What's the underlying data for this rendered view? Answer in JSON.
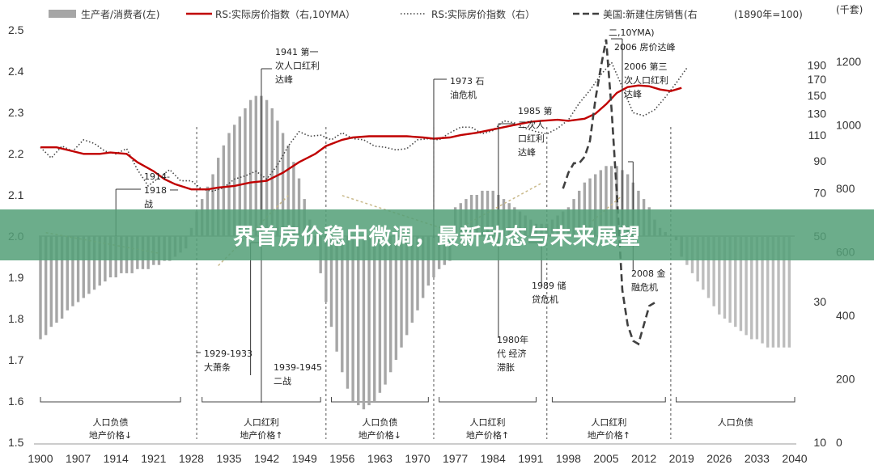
{
  "banner": {
    "title": "界首房价稳中微调，最新动态与未来展望"
  },
  "chart_data": {
    "type": "line",
    "legend": {
      "items": [
        {
          "id": "bar",
          "label": "生产者/消费者(左)"
        },
        {
          "id": "red",
          "label": "RS:实际房价指数（右,10YMA）"
        },
        {
          "id": "dot",
          "label": "RS:实际房价指数（右）"
        },
        {
          "id": "dash",
          "label": "美国:新建住房销售(右"
        }
      ],
      "extra": "(1890年=100)"
    },
    "unit_right_outer": "(千套)",
    "x_axis": {
      "range": [
        1900,
        2040
      ],
      "ticks": [
        1900,
        1907,
        1914,
        1921,
        1928,
        1935,
        1942,
        1949,
        1956,
        1963,
        1970,
        1977,
        1984,
        1991,
        1998,
        2005,
        2012,
        2019,
        2026,
        2033,
        2040
      ]
    },
    "y_left": {
      "range": [
        1.5,
        2.5
      ],
      "ticks": [
        1.5,
        1.6,
        1.7,
        1.8,
        1.9,
        2.0,
        2.1,
        2.2,
        2.3,
        2.4,
        2.5
      ]
    },
    "y_right": {
      "scale": "log",
      "range": [
        10,
        250
      ],
      "ticks": [
        10,
        30,
        50,
        70,
        90,
        110,
        130,
        150,
        170,
        190
      ]
    },
    "y_right_outer": {
      "range": [
        0,
        1300
      ],
      "ticks": [
        0,
        200,
        400,
        600,
        800,
        1000,
        1200
      ]
    },
    "colors": {
      "bar": "#a6a6a6",
      "red": "#c00000",
      "dot": "#444444",
      "dash": "#404040",
      "arrow": "#c9b98a"
    },
    "series": [
      {
        "name": "生产者/消费者(左)",
        "kind": "bar",
        "axis": "left",
        "x": [
          1900,
          1901,
          1902,
          1903,
          1904,
          1905,
          1906,
          1907,
          1908,
          1909,
          1910,
          1911,
          1912,
          1913,
          1914,
          1915,
          1916,
          1917,
          1918,
          1919,
          1920,
          1921,
          1922,
          1923,
          1924,
          1925,
          1926,
          1927,
          1928,
          1929,
          1930,
          1931,
          1932,
          1933,
          1934,
          1935,
          1936,
          1937,
          1938,
          1939,
          1940,
          1941,
          1942,
          1943,
          1944,
          1945,
          1946,
          1947,
          1948,
          1949,
          1950,
          1951,
          1952,
          1953,
          1954,
          1955,
          1956,
          1957,
          1958,
          1959,
          1960,
          1961,
          1962,
          1963,
          1964,
          1965,
          1966,
          1967,
          1968,
          1969,
          1970,
          1971,
          1972,
          1973,
          1974,
          1975,
          1976,
          1977,
          1978,
          1979,
          1980,
          1981,
          1982,
          1983,
          1984,
          1985,
          1986,
          1987,
          1988,
          1989,
          1990,
          1991,
          1992,
          1993,
          1994,
          1995,
          1996,
          1997,
          1998,
          1999,
          2000,
          2001,
          2002,
          2003,
          2004,
          2005,
          2006,
          2007,
          2008,
          2009,
          2010,
          2011,
          2012,
          2013,
          2014,
          2015,
          2016,
          2017,
          2018,
          2019,
          2020,
          2021,
          2022,
          2023,
          2024,
          2025,
          2026,
          2027,
          2028,
          2029,
          2030,
          2031,
          2032,
          2033,
          2034,
          2035,
          2036,
          2037,
          2038,
          2039
        ],
        "values": [
          1.75,
          1.76,
          1.78,
          1.79,
          1.8,
          1.82,
          1.83,
          1.84,
          1.85,
          1.86,
          1.87,
          1.88,
          1.89,
          1.9,
          1.9,
          1.91,
          1.91,
          1.91,
          1.92,
          1.92,
          1.92,
          1.93,
          1.93,
          1.94,
          1.94,
          1.95,
          1.96,
          1.97,
          2.02,
          2.06,
          2.09,
          2.12,
          2.15,
          2.19,
          2.22,
          2.25,
          2.27,
          2.29,
          2.31,
          2.33,
          2.34,
          2.34,
          2.33,
          2.31,
          2.28,
          2.25,
          2.22,
          2.18,
          2.14,
          2.09,
          2.04,
          1.98,
          1.91,
          1.84,
          1.78,
          1.72,
          1.67,
          1.63,
          1.6,
          1.59,
          1.58,
          1.59,
          1.6,
          1.62,
          1.64,
          1.67,
          1.7,
          1.73,
          1.76,
          1.79,
          1.82,
          1.85,
          1.88,
          1.9,
          1.92,
          1.93,
          1.94,
          2.07,
          2.08,
          2.09,
          2.1,
          2.1,
          2.11,
          2.11,
          2.11,
          2.1,
          2.09,
          2.08,
          2.07,
          2.06,
          2.05,
          2.04,
          2.03,
          2.03,
          2.03,
          2.04,
          2.05,
          2.06,
          2.07,
          2.09,
          2.11,
          2.13,
          2.14,
          2.15,
          2.16,
          2.17,
          2.17,
          2.17,
          2.16,
          2.15,
          2.13,
          2.11,
          2.09,
          2.07,
          2.04,
          2.02,
          2.01,
          2.0,
          1.99,
          1.95,
          1.93,
          1.91,
          1.89,
          1.87,
          1.85,
          1.83,
          1.81,
          1.8,
          1.79,
          1.78,
          1.77,
          1.76,
          1.75,
          1.75,
          1.74,
          1.73,
          1.73,
          1.73,
          1.73,
          1.73
        ]
      },
      {
        "name": "RS:实际房价指数（右,10YMA）",
        "kind": "line",
        "axis": "right",
        "x": [
          1900,
          1903,
          1906,
          1908,
          1911,
          1913,
          1916,
          1918,
          1921,
          1923,
          1925,
          1928,
          1931,
          1933,
          1936,
          1939,
          1942,
          1945,
          1948,
          1951,
          1953,
          1956,
          1958,
          1961,
          1963,
          1966,
          1968,
          1971,
          1973,
          1976,
          1978,
          1981,
          1983,
          1986,
          1988,
          1991,
          1993,
          1996,
          1998,
          2001,
          2003,
          2005,
          2007,
          2009,
          2011,
          2013,
          2015,
          2017,
          2019
        ],
        "values": [
          100,
          100,
          97,
          95,
          95,
          96,
          95,
          89,
          83,
          78,
          75,
          72,
          72,
          73,
          74,
          76,
          77,
          82,
          89,
          95,
          101,
          106,
          108,
          109,
          109,
          109,
          109,
          108,
          107,
          108,
          110,
          112,
          114,
          117,
          119,
          122,
          123,
          124,
          123,
          125,
          130,
          140,
          153,
          160,
          162,
          161,
          157,
          155,
          159
        ]
      },
      {
        "name": "RS:实际房价指数（右）",
        "kind": "line",
        "axis": "right",
        "x": [
          1900,
          1902,
          1904,
          1906,
          1908,
          1910,
          1912,
          1914,
          1916,
          1918,
          1920,
          1922,
          1924,
          1926,
          1928,
          1930,
          1932,
          1934,
          1936,
          1938,
          1940,
          1942,
          1944,
          1946,
          1948,
          1950,
          1952,
          1954,
          1956,
          1958,
          1960,
          1962,
          1964,
          1966,
          1968,
          1970,
          1972,
          1974,
          1976,
          1978,
          1980,
          1982,
          1984,
          1986,
          1988,
          1990,
          1992,
          1994,
          1996,
          1998,
          2000,
          2002,
          2004,
          2006,
          2008,
          2010,
          2012,
          2014,
          2016,
          2018,
          2020
        ],
        "values": [
          100,
          92,
          101,
          97,
          106,
          103,
          97,
          95,
          99,
          84,
          74,
          79,
          84,
          77,
          77,
          72,
          71,
          73,
          78,
          80,
          83,
          78,
          87,
          101,
          113,
          109,
          110,
          106,
          112,
          107,
          106,
          101,
          100,
          98,
          99,
          106,
          107,
          106,
          112,
          117,
          117,
          111,
          114,
          123,
          121,
          116,
          113,
          111,
          116,
          124,
          141,
          156,
          176,
          194,
          160,
          131,
          128,
          134,
          148,
          165,
          186
        ]
      },
      {
        "name": "美国:新建住房销售(右",
        "kind": "line",
        "axis": "right_outer",
        "x": [
          1997,
          1998,
          1999,
          2000,
          2001,
          2002,
          2003,
          2004,
          2005,
          2006,
          2007,
          2008,
          2009,
          2010,
          2011,
          2012,
          2013,
          2014
        ],
        "values": [
          800,
          850,
          880,
          880,
          900,
          950,
          1080,
          1180,
          1270,
          1050,
          780,
          480,
          370,
          320,
          310,
          370,
          430,
          440
        ]
      }
    ],
    "annotations": [
      {
        "lines": [
          "1941 第一",
          "次人口红利",
          "达峰"
        ]
      },
      {
        "lines": [
          "1914-",
          "1918 一",
          "战"
        ]
      },
      {
        "lines": [
          "1929-1933",
          "大萧条"
        ]
      },
      {
        "lines": [
          "1939-1945",
          "二战"
        ]
      },
      {
        "lines": [
          "1973 石",
          "油危机"
        ]
      },
      {
        "lines": [
          "1985 第",
          "二次人",
          "口红利",
          "达峰"
        ]
      },
      {
        "lines": [
          "1980年",
          "代 经济",
          "滞胀"
        ]
      },
      {
        "lines": [
          "1989 储",
          "贷危机"
        ]
      },
      {
        "lines": [
          "2006 第三",
          "次人口红利",
          "达峰"
        ]
      },
      {
        "lines": [
          "2006 房价达峰"
        ]
      },
      {
        "lines": [
          "2008 金",
          "融危机"
        ]
      },
      {
        "lines": [
          "二,10YMA)"
        ]
      }
    ],
    "phases": [
      {
        "label": [
          "人口负债",
          "地产价格↓"
        ]
      },
      {
        "label": [
          "人口红利",
          "地产价格↑"
        ]
      },
      {
        "label": [
          "人口负债",
          "地产价格↓"
        ]
      },
      {
        "label": [
          "人口红利",
          "地产价格↑"
        ]
      },
      {
        "label": [
          "人口红利",
          "地产价格↑"
        ]
      },
      {
        "label": [
          "人口负债"
        ]
      }
    ]
  }
}
